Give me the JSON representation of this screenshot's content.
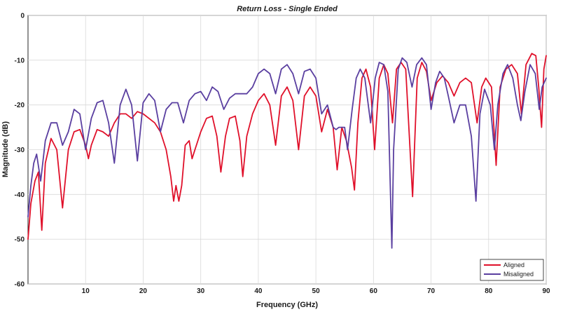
{
  "chart_data": {
    "type": "line",
    "title": "Return Loss - Single Ended",
    "xlabel": "Frequency (GHz)",
    "ylabel": "Magnitude (dB)",
    "xlim": [
      0,
      90
    ],
    "ylim": [
      -60,
      0
    ],
    "x_ticks": [
      "10",
      "20",
      "30",
      "40",
      "50",
      "60",
      "70",
      "80",
      "90"
    ],
    "y_ticks": [
      "0",
      "-10",
      "-20",
      "-30",
      "-40",
      "-50",
      "-60"
    ],
    "grid": true,
    "legend_position": "bottom-right",
    "series": [
      {
        "name": "Aligned",
        "color": "#e0102a",
        "points": [
          [
            0,
            -50
          ],
          [
            0.5,
            -42
          ],
          [
            1.2,
            -37
          ],
          [
            1.8,
            -35
          ],
          [
            2.4,
            -48
          ],
          [
            3,
            -33
          ],
          [
            4,
            -27.5
          ],
          [
            5,
            -30
          ],
          [
            6,
            -43
          ],
          [
            7,
            -30
          ],
          [
            8,
            -26
          ],
          [
            9,
            -25.5
          ],
          [
            10,
            -29
          ],
          [
            10.5,
            -32
          ],
          [
            11,
            -29
          ],
          [
            12,
            -25.5
          ],
          [
            13,
            -26
          ],
          [
            14,
            -27
          ],
          [
            15,
            -24
          ],
          [
            16,
            -22
          ],
          [
            17,
            -22
          ],
          [
            18,
            -23
          ],
          [
            19,
            -21.5
          ],
          [
            20,
            -22
          ],
          [
            21,
            -23
          ],
          [
            22,
            -24
          ],
          [
            23,
            -26
          ],
          [
            24,
            -30
          ],
          [
            24.8,
            -36
          ],
          [
            25.3,
            -41.5
          ],
          [
            25.7,
            -38
          ],
          [
            26.2,
            -41.5
          ],
          [
            26.7,
            -38
          ],
          [
            27.3,
            -29
          ],
          [
            28,
            -28
          ],
          [
            28.5,
            -32
          ],
          [
            29,
            -30
          ],
          [
            30,
            -26
          ],
          [
            31,
            -23
          ],
          [
            32,
            -22.5
          ],
          [
            32.8,
            -27
          ],
          [
            33.5,
            -35
          ],
          [
            34.3,
            -27
          ],
          [
            35,
            -23
          ],
          [
            36,
            -22.5
          ],
          [
            36.8,
            -28
          ],
          [
            37.3,
            -36
          ],
          [
            38,
            -27
          ],
          [
            39,
            -22
          ],
          [
            40,
            -19
          ],
          [
            41,
            -17.5
          ],
          [
            42,
            -20
          ],
          [
            43,
            -29
          ],
          [
            44,
            -18
          ],
          [
            45,
            -16
          ],
          [
            46,
            -19
          ],
          [
            47,
            -30
          ],
          [
            48,
            -18
          ],
          [
            49,
            -16
          ],
          [
            50,
            -18
          ],
          [
            51,
            -26
          ],
          [
            52,
            -21
          ],
          [
            53,
            -25
          ],
          [
            53.7,
            -34.5
          ],
          [
            54.5,
            -25
          ],
          [
            55.3,
            -28
          ],
          [
            56.2,
            -34
          ],
          [
            56.7,
            -39
          ],
          [
            57.3,
            -24
          ],
          [
            58,
            -14
          ],
          [
            58.7,
            -12
          ],
          [
            59.5,
            -16
          ],
          [
            60.2,
            -30
          ],
          [
            61,
            -14
          ],
          [
            61.8,
            -11
          ],
          [
            62.5,
            -13
          ],
          [
            63.3,
            -24
          ],
          [
            64,
            -12
          ],
          [
            64.8,
            -10.5
          ],
          [
            65.6,
            -12
          ],
          [
            66.8,
            -40.5
          ],
          [
            67.6,
            -14
          ],
          [
            68.4,
            -10.5
          ],
          [
            69.2,
            -12.5
          ],
          [
            70,
            -19
          ],
          [
            71,
            -15
          ],
          [
            72,
            -13.5
          ],
          [
            73,
            -15
          ],
          [
            74,
            -18
          ],
          [
            75,
            -15
          ],
          [
            76,
            -14
          ],
          [
            77,
            -15
          ],
          [
            78,
            -24
          ],
          [
            78.8,
            -16
          ],
          [
            79.5,
            -14
          ],
          [
            80.5,
            -16
          ],
          [
            81.3,
            -33.5
          ],
          [
            82,
            -16
          ],
          [
            83,
            -12
          ],
          [
            84,
            -11
          ],
          [
            85,
            -13
          ],
          [
            85.7,
            -22
          ],
          [
            86.5,
            -11
          ],
          [
            87.5,
            -8.5
          ],
          [
            88.2,
            -9
          ],
          [
            88.7,
            -16
          ],
          [
            89.2,
            -25
          ],
          [
            89.6,
            -12
          ],
          [
            90,
            -9
          ]
        ]
      },
      {
        "name": "Misaligned",
        "color": "#5a3fa0",
        "points": [
          [
            0,
            -45
          ],
          [
            0.5,
            -38
          ],
          [
            1,
            -33
          ],
          [
            1.5,
            -31
          ],
          [
            2.2,
            -37
          ],
          [
            3,
            -28
          ],
          [
            4,
            -24
          ],
          [
            5,
            -24
          ],
          [
            6,
            -29
          ],
          [
            7,
            -26
          ],
          [
            8,
            -21
          ],
          [
            9,
            -22
          ],
          [
            10,
            -30
          ],
          [
            11,
            -23
          ],
          [
            12,
            -19.5
          ],
          [
            13,
            -19
          ],
          [
            14,
            -24
          ],
          [
            15,
            -33
          ],
          [
            16,
            -20
          ],
          [
            17,
            -16.5
          ],
          [
            18,
            -20
          ],
          [
            19,
            -32.5
          ],
          [
            20,
            -19.5
          ],
          [
            21,
            -17.5
          ],
          [
            22,
            -19
          ],
          [
            23,
            -26
          ],
          [
            24,
            -21
          ],
          [
            25,
            -19.5
          ],
          [
            26,
            -19.5
          ],
          [
            27,
            -24
          ],
          [
            28,
            -19
          ],
          [
            29,
            -17.5
          ],
          [
            30,
            -17
          ],
          [
            31,
            -19
          ],
          [
            32,
            -16
          ],
          [
            33,
            -17
          ],
          [
            34,
            -21
          ],
          [
            35,
            -18.5
          ],
          [
            36,
            -17.5
          ],
          [
            37,
            -17.5
          ],
          [
            38,
            -17.5
          ],
          [
            39,
            -16
          ],
          [
            40,
            -13
          ],
          [
            41,
            -12
          ],
          [
            42,
            -13
          ],
          [
            43,
            -17.5
          ],
          [
            44,
            -12
          ],
          [
            45,
            -11
          ],
          [
            46,
            -13
          ],
          [
            47,
            -17.5
          ],
          [
            48,
            -12.5
          ],
          [
            49,
            -12
          ],
          [
            50,
            -14
          ],
          [
            51,
            -22
          ],
          [
            52,
            -20
          ],
          [
            53,
            -25
          ],
          [
            53.5,
            -25.5
          ],
          [
            54,
            -25
          ],
          [
            55,
            -25
          ],
          [
            55.5,
            -30
          ],
          [
            56.3,
            -21
          ],
          [
            57,
            -14
          ],
          [
            57.7,
            -12
          ],
          [
            58.5,
            -14
          ],
          [
            59.5,
            -24
          ],
          [
            60.3,
            -14
          ],
          [
            61,
            -10.5
          ],
          [
            61.8,
            -11
          ],
          [
            62.5,
            -17
          ],
          [
            63.2,
            -52
          ],
          [
            63.5,
            -30
          ],
          [
            64.3,
            -12
          ],
          [
            65,
            -9.5
          ],
          [
            65.8,
            -10.5
          ],
          [
            66.7,
            -16
          ],
          [
            67.5,
            -11
          ],
          [
            68.4,
            -9.5
          ],
          [
            69.2,
            -11
          ],
          [
            70,
            -21
          ],
          [
            70.8,
            -15
          ],
          [
            71.5,
            -12.5
          ],
          [
            72.3,
            -14
          ],
          [
            73,
            -18
          ],
          [
            74,
            -24
          ],
          [
            75,
            -20
          ],
          [
            76,
            -20
          ],
          [
            77,
            -27
          ],
          [
            77.8,
            -41.5
          ],
          [
            78.5,
            -22
          ],
          [
            79.3,
            -16.5
          ],
          [
            80.3,
            -20
          ],
          [
            81,
            -30
          ],
          [
            81.6,
            -20
          ],
          [
            82.5,
            -13
          ],
          [
            83.3,
            -11
          ],
          [
            84.2,
            -14
          ],
          [
            85,
            -20
          ],
          [
            85.6,
            -23.5
          ],
          [
            86.3,
            -17
          ],
          [
            87.2,
            -11
          ],
          [
            88.1,
            -13
          ],
          [
            88.8,
            -21
          ],
          [
            89.3,
            -16
          ],
          [
            90,
            -14
          ]
        ]
      }
    ]
  }
}
